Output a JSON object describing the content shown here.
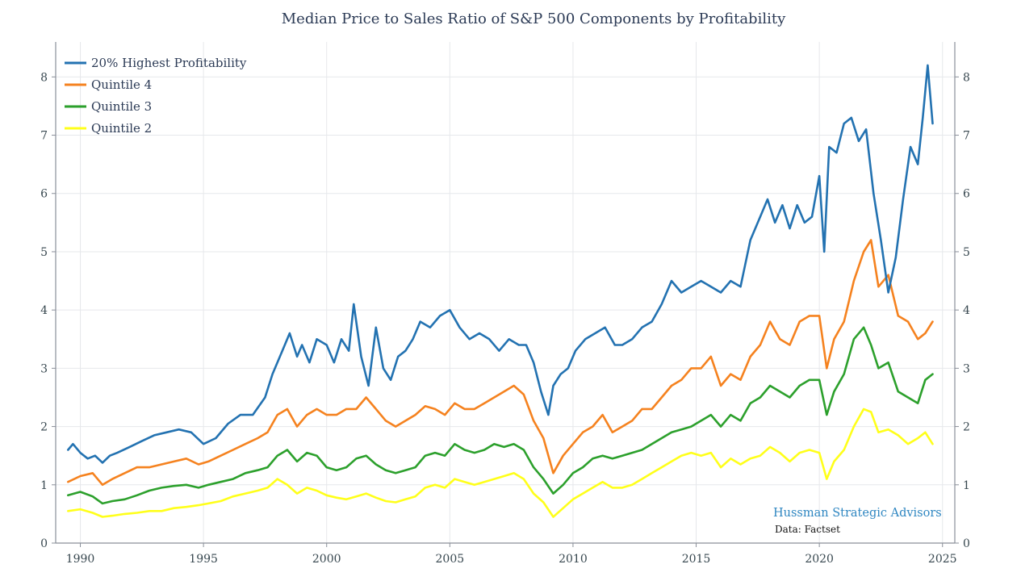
{
  "chart_data": {
    "type": "line",
    "title": "Median Price to Sales Ratio of S&P 500 Components by Profitability",
    "xlabel": "",
    "ylabel": "",
    "xlim": [
      1989.0,
      2025.5
    ],
    "ylim": [
      0,
      8.6
    ],
    "x_ticks": [
      1990,
      1995,
      2000,
      2005,
      2010,
      2015,
      2020,
      2025
    ],
    "y_ticks": [
      0,
      1,
      2,
      3,
      4,
      5,
      6,
      7,
      8
    ],
    "grid": true,
    "legend_position": "top-left",
    "series": [
      {
        "name": "20% Highest Profitability",
        "color": "#2372b1",
        "x": [
          1989.5,
          1989.7,
          1990.0,
          1990.3,
          1990.6,
          1990.9,
          1991.2,
          1991.5,
          1992.0,
          1992.5,
          1993.0,
          1993.5,
          1994.0,
          1994.5,
          1995.0,
          1995.5,
          1996.0,
          1996.5,
          1997.0,
          1997.5,
          1997.8,
          1998.2,
          1998.5,
          1998.8,
          1999.0,
          1999.3,
          1999.6,
          2000.0,
          2000.3,
          2000.6,
          2000.9,
          2001.1,
          2001.4,
          2001.7,
          2002.0,
          2002.3,
          2002.6,
          2002.9,
          2003.2,
          2003.5,
          2003.8,
          2004.2,
          2004.6,
          2005.0,
          2005.4,
          2005.8,
          2006.2,
          2006.6,
          2007.0,
          2007.4,
          2007.8,
          2008.1,
          2008.4,
          2008.7,
          2009.0,
          2009.2,
          2009.5,
          2009.8,
          2010.1,
          2010.5,
          2010.9,
          2011.3,
          2011.7,
          2012.0,
          2012.4,
          2012.8,
          2013.2,
          2013.6,
          2014.0,
          2014.4,
          2014.8,
          2015.2,
          2015.6,
          2016.0,
          2016.4,
          2016.8,
          2017.2,
          2017.6,
          2017.9,
          2018.2,
          2018.5,
          2018.8,
          2019.1,
          2019.4,
          2019.7,
          2020.0,
          2020.2,
          2020.4,
          2020.7,
          2021.0,
          2021.3,
          2021.6,
          2021.9,
          2022.2,
          2022.5,
          2022.8,
          2023.1,
          2023.4,
          2023.7,
          2024.0,
          2024.2,
          2024.4,
          2024.6
        ],
        "y": [
          1.6,
          1.7,
          1.55,
          1.45,
          1.5,
          1.38,
          1.5,
          1.55,
          1.65,
          1.75,
          1.85,
          1.9,
          1.95,
          1.9,
          1.7,
          1.8,
          2.05,
          2.2,
          2.2,
          2.5,
          2.9,
          3.3,
          3.6,
          3.2,
          3.4,
          3.1,
          3.5,
          3.4,
          3.1,
          3.5,
          3.3,
          4.1,
          3.2,
          2.7,
          3.7,
          3.0,
          2.8,
          3.2,
          3.3,
          3.5,
          3.8,
          3.7,
          3.9,
          4.0,
          3.7,
          3.5,
          3.6,
          3.5,
          3.3,
          3.5,
          3.4,
          3.4,
          3.1,
          2.6,
          2.2,
          2.7,
          2.9,
          3.0,
          3.3,
          3.5,
          3.6,
          3.7,
          3.4,
          3.4,
          3.5,
          3.7,
          3.8,
          4.1,
          4.5,
          4.3,
          4.4,
          4.5,
          4.4,
          4.3,
          4.5,
          4.4,
          5.2,
          5.6,
          5.9,
          5.5,
          5.8,
          5.4,
          5.8,
          5.5,
          5.6,
          6.3,
          5.0,
          6.8,
          6.7,
          7.2,
          7.3,
          6.9,
          7.1,
          6.0,
          5.2,
          4.3,
          4.9,
          5.9,
          6.8,
          6.5,
          7.3,
          8.2,
          7.2
        ]
      },
      {
        "name": "Quintile 4",
        "color": "#f5821f",
        "x": [
          1989.5,
          1990.0,
          1990.5,
          1990.9,
          1991.3,
          1991.8,
          1992.3,
          1992.8,
          1993.3,
          1993.8,
          1994.3,
          1994.8,
          1995.2,
          1995.7,
          1996.2,
          1996.7,
          1997.2,
          1997.6,
          1998.0,
          1998.4,
          1998.8,
          1999.2,
          1999.6,
          2000.0,
          2000.4,
          2000.8,
          2001.2,
          2001.6,
          2002.0,
          2002.4,
          2002.8,
          2003.2,
          2003.6,
          2004.0,
          2004.4,
          2004.8,
          2005.2,
          2005.6,
          2006.0,
          2006.4,
          2006.8,
          2007.2,
          2007.6,
          2008.0,
          2008.4,
          2008.8,
          2009.2,
          2009.6,
          2010.0,
          2010.4,
          2010.8,
          2011.2,
          2011.6,
          2012.0,
          2012.4,
          2012.8,
          2013.2,
          2013.6,
          2014.0,
          2014.4,
          2014.8,
          2015.2,
          2015.6,
          2016.0,
          2016.4,
          2016.8,
          2017.2,
          2017.6,
          2018.0,
          2018.4,
          2018.8,
          2019.2,
          2019.6,
          2020.0,
          2020.3,
          2020.6,
          2021.0,
          2021.4,
          2021.8,
          2022.1,
          2022.4,
          2022.8,
          2023.2,
          2023.6,
          2024.0,
          2024.3,
          2024.6
        ],
        "y": [
          1.05,
          1.15,
          1.2,
          1.0,
          1.1,
          1.2,
          1.3,
          1.3,
          1.35,
          1.4,
          1.45,
          1.35,
          1.4,
          1.5,
          1.6,
          1.7,
          1.8,
          1.9,
          2.2,
          2.3,
          2.0,
          2.2,
          2.3,
          2.2,
          2.2,
          2.3,
          2.3,
          2.5,
          2.3,
          2.1,
          2.0,
          2.1,
          2.2,
          2.35,
          2.3,
          2.2,
          2.4,
          2.3,
          2.3,
          2.4,
          2.5,
          2.6,
          2.7,
          2.55,
          2.1,
          1.8,
          1.2,
          1.5,
          1.7,
          1.9,
          2.0,
          2.2,
          1.9,
          2.0,
          2.1,
          2.3,
          2.3,
          2.5,
          2.7,
          2.8,
          3.0,
          3.0,
          3.2,
          2.7,
          2.9,
          2.8,
          3.2,
          3.4,
          3.8,
          3.5,
          3.4,
          3.8,
          3.9,
          3.9,
          3.0,
          3.5,
          3.8,
          4.5,
          5.0,
          5.2,
          4.4,
          4.6,
          3.9,
          3.8,
          3.5,
          3.6,
          3.8
        ]
      },
      {
        "name": "Quintile 3",
        "color": "#2ca02c",
        "x": [
          1989.5,
          1990.0,
          1990.5,
          1990.9,
          1991.3,
          1991.8,
          1992.3,
          1992.8,
          1993.3,
          1993.8,
          1994.3,
          1994.8,
          1995.2,
          1995.7,
          1996.2,
          1996.7,
          1997.2,
          1997.6,
          1998.0,
          1998.4,
          1998.8,
          1999.2,
          1999.6,
          2000.0,
          2000.4,
          2000.8,
          2001.2,
          2001.6,
          2002.0,
          2002.4,
          2002.8,
          2003.2,
          2003.6,
          2004.0,
          2004.4,
          2004.8,
          2005.2,
          2005.6,
          2006.0,
          2006.4,
          2006.8,
          2007.2,
          2007.6,
          2008.0,
          2008.4,
          2008.8,
          2009.2,
          2009.6,
          2010.0,
          2010.4,
          2010.8,
          2011.2,
          2011.6,
          2012.0,
          2012.4,
          2012.8,
          2013.2,
          2013.6,
          2014.0,
          2014.4,
          2014.8,
          2015.2,
          2015.6,
          2016.0,
          2016.4,
          2016.8,
          2017.2,
          2017.6,
          2018.0,
          2018.4,
          2018.8,
          2019.2,
          2019.6,
          2020.0,
          2020.3,
          2020.6,
          2021.0,
          2021.4,
          2021.8,
          2022.1,
          2022.4,
          2022.8,
          2023.2,
          2023.6,
          2024.0,
          2024.3,
          2024.6
        ],
        "y": [
          0.82,
          0.88,
          0.8,
          0.68,
          0.72,
          0.75,
          0.82,
          0.9,
          0.95,
          0.98,
          1.0,
          0.95,
          1.0,
          1.05,
          1.1,
          1.2,
          1.25,
          1.3,
          1.5,
          1.6,
          1.4,
          1.55,
          1.5,
          1.3,
          1.25,
          1.3,
          1.45,
          1.5,
          1.35,
          1.25,
          1.2,
          1.25,
          1.3,
          1.5,
          1.55,
          1.5,
          1.7,
          1.6,
          1.55,
          1.6,
          1.7,
          1.65,
          1.7,
          1.6,
          1.3,
          1.1,
          0.85,
          1.0,
          1.2,
          1.3,
          1.45,
          1.5,
          1.45,
          1.5,
          1.55,
          1.6,
          1.7,
          1.8,
          1.9,
          1.95,
          2.0,
          2.1,
          2.2,
          2.0,
          2.2,
          2.1,
          2.4,
          2.5,
          2.7,
          2.6,
          2.5,
          2.7,
          2.8,
          2.8,
          2.2,
          2.6,
          2.9,
          3.5,
          3.7,
          3.4,
          3.0,
          3.1,
          2.6,
          2.5,
          2.4,
          2.8,
          2.9
        ]
      },
      {
        "name": "Quintile 2",
        "color": "#ffff1a",
        "x": [
          1989.5,
          1990.0,
          1990.5,
          1990.9,
          1991.3,
          1991.8,
          1992.3,
          1992.8,
          1993.3,
          1993.8,
          1994.3,
          1994.8,
          1995.2,
          1995.7,
          1996.2,
          1996.7,
          1997.2,
          1997.6,
          1998.0,
          1998.4,
          1998.8,
          1999.2,
          1999.6,
          2000.0,
          2000.4,
          2000.8,
          2001.2,
          2001.6,
          2002.0,
          2002.4,
          2002.8,
          2003.2,
          2003.6,
          2004.0,
          2004.4,
          2004.8,
          2005.2,
          2005.6,
          2006.0,
          2006.4,
          2006.8,
          2007.2,
          2007.6,
          2008.0,
          2008.4,
          2008.8,
          2009.2,
          2009.6,
          2010.0,
          2010.4,
          2010.8,
          2011.2,
          2011.6,
          2012.0,
          2012.4,
          2012.8,
          2013.2,
          2013.6,
          2014.0,
          2014.4,
          2014.8,
          2015.2,
          2015.6,
          2016.0,
          2016.4,
          2016.8,
          2017.2,
          2017.6,
          2018.0,
          2018.4,
          2018.8,
          2019.2,
          2019.6,
          2020.0,
          2020.3,
          2020.6,
          2021.0,
          2021.4,
          2021.8,
          2022.1,
          2022.4,
          2022.8,
          2023.2,
          2023.6,
          2024.0,
          2024.3,
          2024.6
        ],
        "y": [
          0.55,
          0.58,
          0.52,
          0.45,
          0.47,
          0.5,
          0.52,
          0.55,
          0.55,
          0.6,
          0.62,
          0.65,
          0.68,
          0.72,
          0.8,
          0.85,
          0.9,
          0.95,
          1.1,
          1.0,
          0.85,
          0.95,
          0.9,
          0.82,
          0.78,
          0.75,
          0.8,
          0.85,
          0.78,
          0.72,
          0.7,
          0.75,
          0.8,
          0.95,
          1.0,
          0.95,
          1.1,
          1.05,
          1.0,
          1.05,
          1.1,
          1.15,
          1.2,
          1.1,
          0.85,
          0.7,
          0.45,
          0.6,
          0.75,
          0.85,
          0.95,
          1.05,
          0.95,
          0.95,
          1.0,
          1.1,
          1.2,
          1.3,
          1.4,
          1.5,
          1.55,
          1.5,
          1.55,
          1.3,
          1.45,
          1.35,
          1.45,
          1.5,
          1.65,
          1.55,
          1.4,
          1.55,
          1.6,
          1.55,
          1.1,
          1.4,
          1.6,
          2.0,
          2.3,
          2.25,
          1.9,
          1.95,
          1.85,
          1.7,
          1.8,
          1.9,
          1.7
        ]
      }
    ]
  },
  "credits": {
    "source_org": "Hussman Strategic Advisors",
    "data_source": "Data: Factset"
  }
}
